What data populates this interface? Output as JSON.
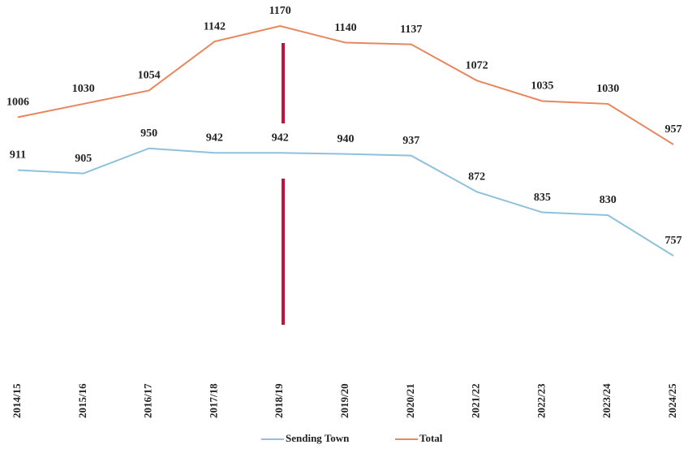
{
  "chart_data": {
    "type": "line",
    "categories": [
      "2014/15",
      "2015/16",
      "2016/17",
      "2017/18",
      "2018/19",
      "2019/20",
      "2020/21",
      "2021/22",
      "2022/23",
      "2023/24",
      "2024/25"
    ],
    "series": [
      {
        "name": "Sending Town",
        "color": "#8fc1dc",
        "values": [
          911,
          905,
          950,
          942,
          942,
          940,
          937,
          872,
          835,
          830,
          757
        ]
      },
      {
        "name": "Total",
        "color": "#e8875e",
        "values": [
          1006,
          1030,
          1054,
          1142,
          1170,
          1140,
          1137,
          1072,
          1035,
          1030,
          957
        ]
      }
    ]
  }
}
